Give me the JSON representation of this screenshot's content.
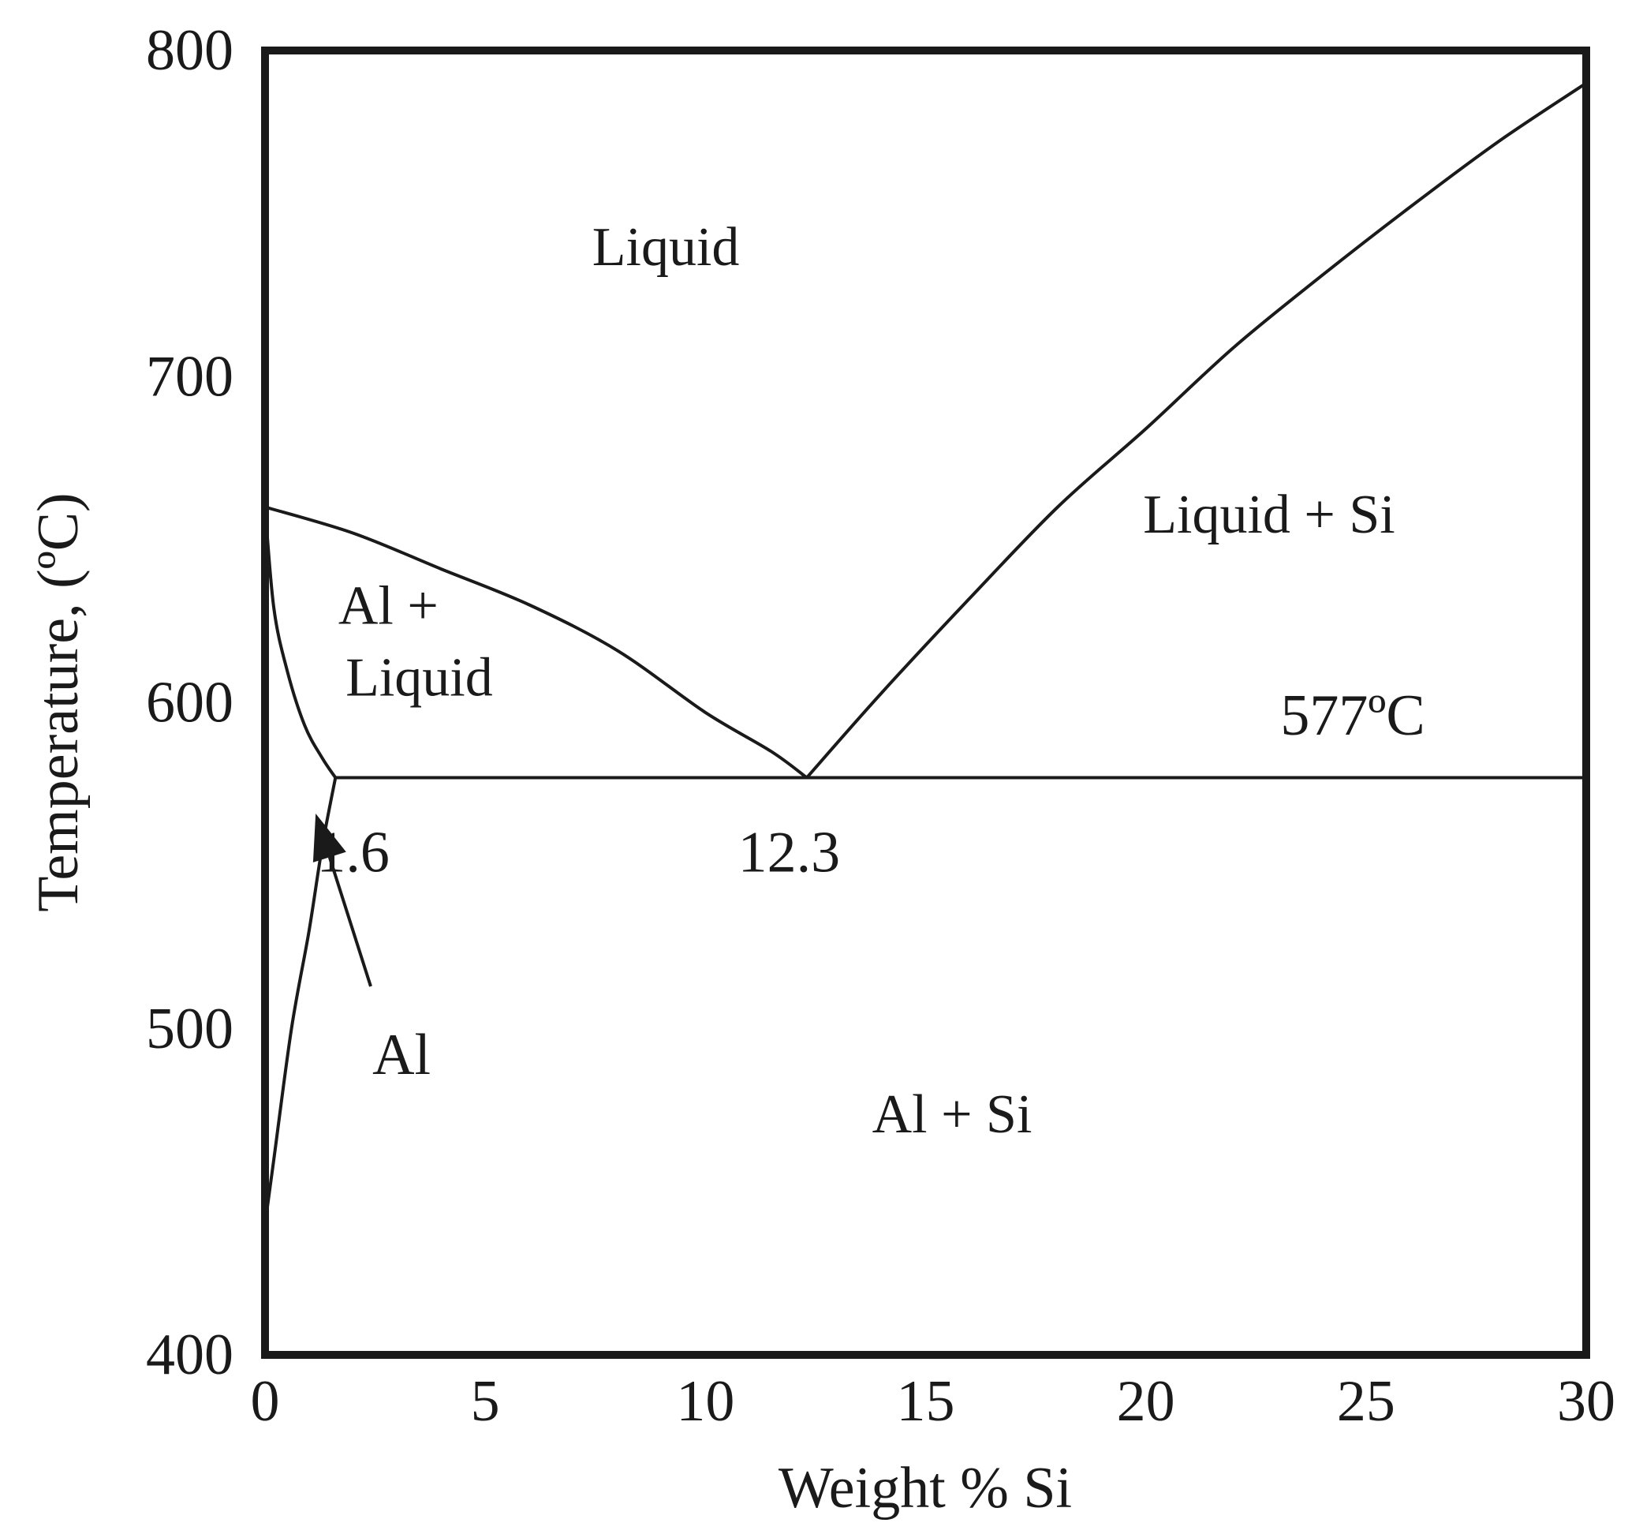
{
  "chart_data": {
    "type": "line",
    "title": "",
    "xlabel": "Weight % Si",
    "ylabel": "Temperature, (ºC)",
    "xlim": [
      0,
      30
    ],
    "ylim": [
      400,
      800
    ],
    "x_ticks": [
      0,
      5,
      10,
      15,
      20,
      25,
      30
    ],
    "y_ticks": [
      400,
      500,
      600,
      700,
      800
    ],
    "grid": false,
    "legend": "none",
    "series": [
      {
        "x": [
          0,
          0.2,
          0.5,
          0.9,
          1.3,
          1.6
        ],
        "y": [
          660,
          629,
          610,
          593,
          583,
          577
        ]
      },
      {
        "x": [
          0,
          2,
          4,
          6,
          8,
          10,
          11.5,
          12.3
        ],
        "y": [
          660,
          652,
          641,
          630,
          616,
          597,
          585,
          577
        ]
      },
      {
        "x": [
          12.3,
          14,
          16,
          18,
          20,
          22,
          24,
          26,
          28,
          30
        ],
        "y": [
          577,
          603,
          632,
          660,
          684,
          709,
          731,
          752,
          772,
          790
        ]
      },
      {
        "x": [
          1.6,
          30
        ],
        "y": [
          577,
          577
        ]
      },
      {
        "x": [
          1.6,
          1.3,
          1.0,
          0.6,
          0.2,
          0
        ],
        "y": [
          577,
          556,
          530,
          500,
          460,
          440
        ]
      }
    ],
    "region_labels": [
      {
        "text": "Liquid",
        "x": 9.1,
        "y": 740
      },
      {
        "text": "Liquid + Si",
        "x": 22.8,
        "y": 658
      },
      {
        "text": "Al +",
        "x": 2.8,
        "y": 630
      },
      {
        "text": "Liquid",
        "x": 3.5,
        "y": 608
      },
      {
        "text": "Al + Si",
        "x": 15.6,
        "y": 474
      }
    ],
    "annotations": [
      {
        "text": "577ºC",
        "x": 24.7,
        "y": 596
      },
      {
        "text": "1.6",
        "x": 2.0,
        "y": 554
      },
      {
        "text": "12.3",
        "x": 11.9,
        "y": 554
      },
      {
        "text": "Al",
        "x": 3.1,
        "y": 492
      }
    ],
    "arrow": {
      "from": [
        2.4,
        513
      ],
      "to": [
        1.15,
        566
      ]
    }
  }
}
